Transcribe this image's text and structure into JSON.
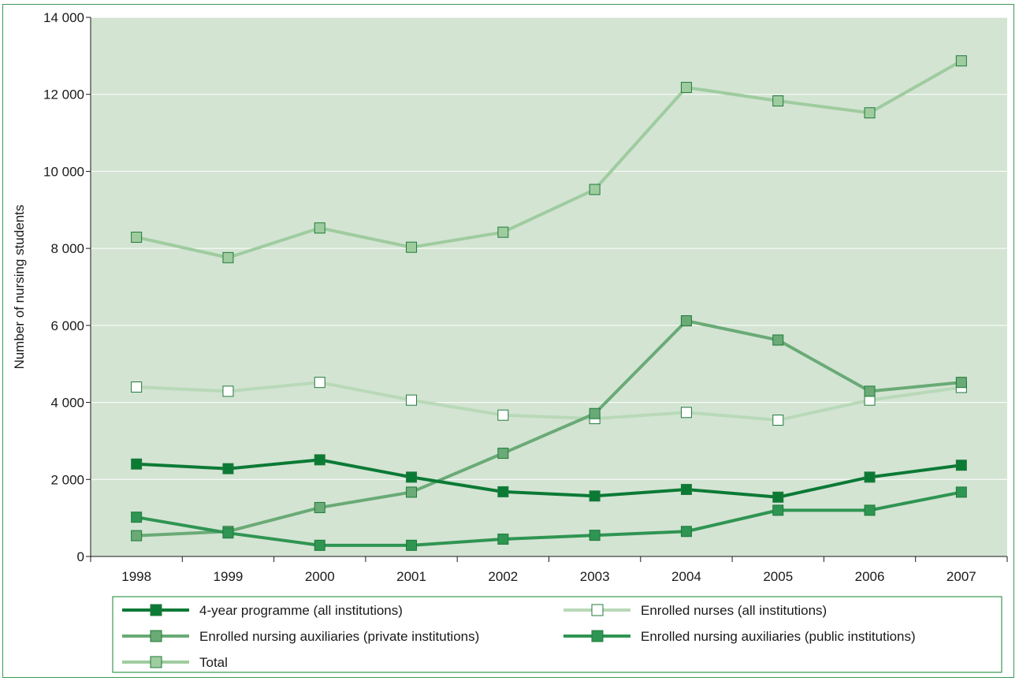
{
  "chart_data": {
    "type": "line",
    "title": "",
    "xlabel": "",
    "ylabel": "Number of nursing students",
    "ylim": [
      0,
      14000
    ],
    "yticks": [
      0,
      2000,
      4000,
      6000,
      8000,
      10000,
      12000,
      14000
    ],
    "ytick_labels": [
      "0",
      "2 000",
      "4 000",
      "6 000",
      "8 000",
      "10 000",
      "12 000",
      "14 000"
    ],
    "categories": [
      "1998",
      "1999",
      "2000",
      "2001",
      "2002",
      "2003",
      "2004",
      "2005",
      "2006",
      "2007"
    ],
    "grid": "horizontal",
    "legend_placement": "bottom",
    "plot_background": "#d3e4d3",
    "series": [
      {
        "name": "4-year programme (all institutions)",
        "color": "#0b7a35",
        "marker_fill": "#0b7a35",
        "values": [
          2400,
          2280,
          2510,
          2060,
          1680,
          1570,
          1740,
          1540,
          2060,
          2370
        ]
      },
      {
        "name": "Enrolled nurses (all institutions)",
        "color": "#b9d9b8",
        "marker_fill": "#ffffff",
        "values": [
          4400,
          4290,
          4520,
          4060,
          3670,
          3580,
          3740,
          3540,
          4060,
          4390
        ]
      },
      {
        "name": "Enrolled nursing auxiliaries (private institutions)",
        "color": "#6aaa76",
        "marker_fill": "#6aaa76",
        "values": [
          540,
          650,
          1270,
          1670,
          2680,
          3710,
          6120,
          5620,
          4290,
          4520
        ]
      },
      {
        "name": "Enrolled nursing auxiliaries (public institutions)",
        "color": "#2f9552",
        "marker_fill": "#2f9552",
        "values": [
          1020,
          610,
          290,
          290,
          450,
          550,
          650,
          1200,
          1200,
          1670
        ]
      },
      {
        "name": "Total",
        "color": "#9fcc9f",
        "marker_fill": "#9fcc9f",
        "values": [
          8290,
          7760,
          8530,
          8030,
          8420,
          9530,
          12180,
          11830,
          11520,
          12870
        ]
      }
    ]
  }
}
